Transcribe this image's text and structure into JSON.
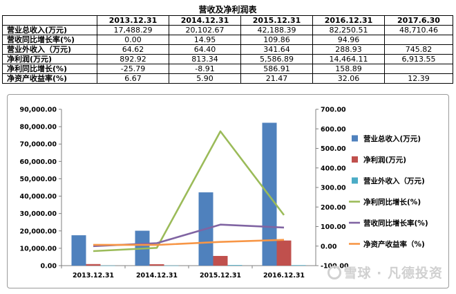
{
  "table": {
    "title": "营收及净利润表",
    "headers": [
      "",
      "2013.12.31",
      "2014.12.31",
      "2015.12.31",
      "2016.12.31",
      "2017.6.30"
    ],
    "rows": [
      {
        "label": "营业总收入(万元)",
        "cells": [
          "17,488.29",
          "20,102.67",
          "42,188.39",
          "82,250.51",
          "48,710.46"
        ]
      },
      {
        "label": "营收同比增长率(%)",
        "cells": [
          "0.00",
          "14.95",
          "109.86",
          "94.96",
          ""
        ]
      },
      {
        "label": "营业外收入（万元)",
        "cells": [
          "64.62",
          "64.40",
          "341.64",
          "288.93",
          "745.82"
        ]
      },
      {
        "label": "净利润(万元)",
        "cells": [
          "892.92",
          "813.34",
          "5,586.89",
          "14,464.11",
          "6,913.55"
        ]
      },
      {
        "label": "净利同比增长(%)",
        "cells": [
          "-25.79",
          "-8.91",
          "586.91",
          "158.89",
          ""
        ]
      },
      {
        "label": "净资产收益率(%)",
        "cells": [
          "6.67",
          "5.90",
          "21.47",
          "32.06",
          "12.39"
        ]
      }
    ]
  },
  "chart_data": {
    "type": "bar",
    "categories": [
      "2013.12.31",
      "2014.12.31",
      "2015.12.31",
      "2016.12.31"
    ],
    "left_axis": {
      "min": 0,
      "max": 90000,
      "step": 10000,
      "ticks": [
        "0.00",
        "10,000.00",
        "20,000.00",
        "30,000.00",
        "40,000.00",
        "50,000.00",
        "60,000.00",
        "70,000.00",
        "80,000.00",
        "90,000.00"
      ]
    },
    "right_axis": {
      "min": -100,
      "max": 700,
      "step": 100,
      "ticks": [
        "-100.00",
        "0.00",
        "100.00",
        "200.00",
        "300.00",
        "400.00",
        "500.00",
        "600.00",
        "700.00"
      ]
    },
    "series": [
      {
        "name": "营业总收入(万元)",
        "type": "bar",
        "axis": "left",
        "color": "#4f81bd",
        "values": [
          17488.29,
          20102.67,
          42188.39,
          82250.51
        ]
      },
      {
        "name": "净利润(万元)",
        "type": "bar",
        "axis": "left",
        "color": "#c0504d",
        "values": [
          892.92,
          813.34,
          5586.89,
          14464.11
        ]
      },
      {
        "name": "营业外收入（万元)",
        "type": "bar",
        "axis": "left",
        "color": "#4bacc6",
        "values": [
          64.62,
          64.4,
          341.64,
          288.93
        ]
      },
      {
        "name": "净利同比增长(%)",
        "type": "line",
        "axis": "right",
        "color": "#9bbb59",
        "values": [
          -25.79,
          -8.91,
          586.91,
          158.89
        ]
      },
      {
        "name": "营收同比增长率(%)",
        "type": "line",
        "axis": "right",
        "color": "#8064a2",
        "values": [
          0.0,
          14.95,
          109.86,
          94.96
        ]
      },
      {
        "name": "净资产收益率（%)",
        "type": "line",
        "axis": "right",
        "color": "#f79646",
        "values": [
          6.67,
          5.9,
          21.47,
          32.06
        ]
      }
    ],
    "legend": "right",
    "grid": false
  },
  "watermark": "雪球 · 凡德投资"
}
